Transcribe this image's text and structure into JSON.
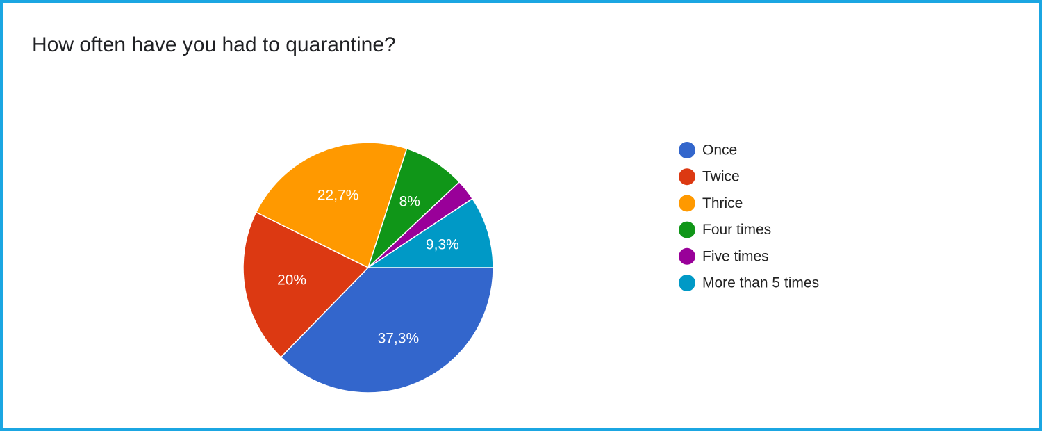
{
  "chart_data": {
    "type": "pie",
    "title": "How often have you had to quarantine?",
    "categories": [
      "Once",
      "Twice",
      "Thrice",
      "Four times",
      "Five times",
      "More than 5 times"
    ],
    "values": [
      37.3,
      20,
      22.7,
      8,
      2.7,
      9.3
    ],
    "value_labels": [
      "37,3%",
      "20%",
      "22,7%",
      "8%",
      null,
      "9,3%"
    ],
    "colors": [
      "#3366cc",
      "#dc3912",
      "#ff9900",
      "#109618",
      "#990099",
      "#0099c6"
    ],
    "legend": "right"
  }
}
